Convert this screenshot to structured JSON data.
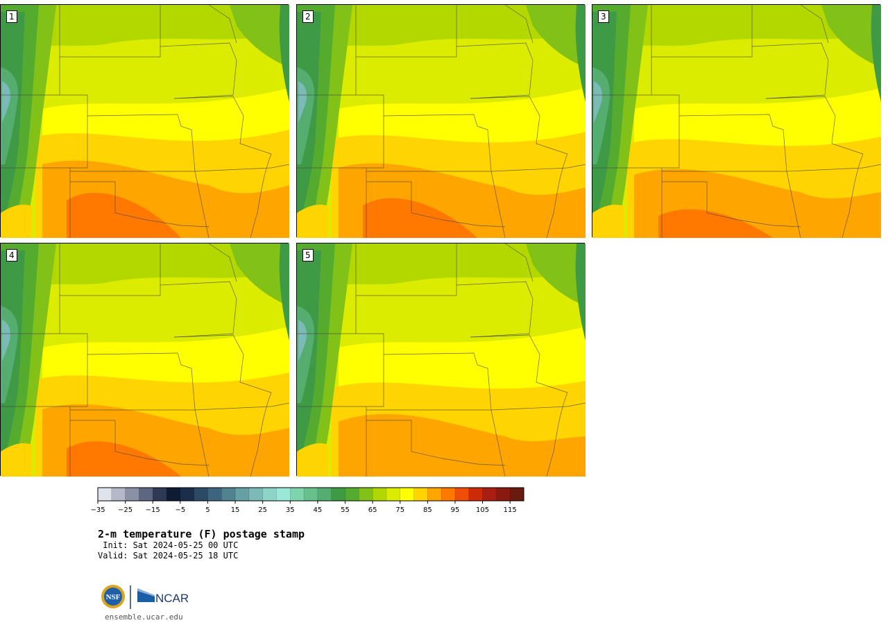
{
  "panels": [
    {
      "label": "1",
      "hot": 1.0
    },
    {
      "label": "2",
      "hot": 0.92
    },
    {
      "label": "3",
      "hot": 0.75
    },
    {
      "label": "4",
      "hot": 0.85
    },
    {
      "label": "5",
      "hot": 0.55
    }
  ],
  "colorbar": {
    "levels": [
      -35,
      -30,
      -25,
      -20,
      -15,
      -10,
      -5,
      0,
      5,
      10,
      15,
      20,
      25,
      30,
      35,
      40,
      45,
      50,
      55,
      60,
      65,
      70,
      75,
      80,
      85,
      90,
      95,
      100,
      105,
      110,
      115,
      120
    ],
    "tick_labels": [
      "−35",
      "−25",
      "−15",
      "−5",
      "5",
      "15",
      "25",
      "35",
      "45",
      "55",
      "65",
      "75",
      "85",
      "95",
      "105",
      "115"
    ],
    "colors": [
      "#dfe3ec",
      "#b4b8c8",
      "#8a90a6",
      "#5e6781",
      "#2f3a56",
      "#0f1a33",
      "#1a2e4c",
      "#2b4a66",
      "#3d6580",
      "#51828f",
      "#66a0a3",
      "#7bbab6",
      "#8dd3c7",
      "#9ce8d8",
      "#7ed4ad",
      "#68c08d",
      "#55ae6f",
      "#3f9a45",
      "#55ab2e",
      "#82c117",
      "#b2d800",
      "#dcec00",
      "#ffff00",
      "#ffd400",
      "#ffa500",
      "#ff7800",
      "#f04c0a",
      "#cc2a08",
      "#a81e10",
      "#8a1a10",
      "#6b1a10"
    ]
  },
  "title": "2-m temperature (F) postage stamp",
  "init_line": " Init: Sat 2024-05-25 00 UTC",
  "valid_line": "Valid: Sat 2024-05-25 18 UTC",
  "logo": {
    "nsf": "NSF",
    "ncar": "NCAR"
  },
  "url": "ensemble.ucar.edu"
}
